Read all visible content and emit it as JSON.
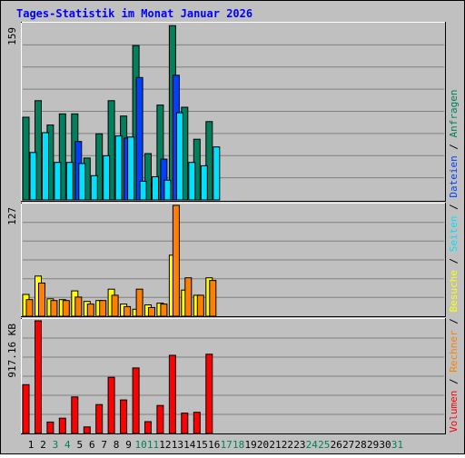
{
  "colors": {
    "frame_bg": "#c0c0c0",
    "title": "#0000ff",
    "grid": "#808080",
    "hits": "#00805c",
    "files": "#0040ff",
    "pages": "#00e0ff",
    "visits": "#ffff00",
    "sites": "#ff8000",
    "volume": "#ff0000",
    "weekday_label": "#000000",
    "weekend_label": "#00805c"
  },
  "chart_data": {
    "title": "Tages-Statistik im Monat Januar 2026",
    "type": "bar",
    "categories": [
      "1",
      "2",
      "3",
      "4",
      "5",
      "6",
      "7",
      "8",
      "9",
      "10",
      "11",
      "12",
      "13",
      "14",
      "15",
      "16",
      "17",
      "18",
      "19",
      "20",
      "21",
      "22",
      "23",
      "24",
      "25",
      "26",
      "27",
      "28",
      "29",
      "30",
      "31"
    ],
    "weekend_days": [
      "3",
      "4",
      "10",
      "11",
      "17",
      "18",
      "24",
      "25",
      "31"
    ],
    "legend_right": [
      "Volumen",
      "Rechner",
      "Besuche",
      "Seiten",
      "Dateien",
      "Anfragen"
    ],
    "panels": [
      {
        "max_label": "159",
        "ylim": [
          0,
          159
        ],
        "series": [
          {
            "name": "Anfragen",
            "values": [
              75,
              90,
              68,
              78,
              78,
              38,
              60,
              90,
              76,
              140,
              42,
              86,
              158,
              84,
              55,
              71,
              0,
              0,
              0,
              0,
              0,
              0,
              0,
              0,
              0,
              0,
              0,
              0,
              0,
              0,
              0
            ]
          },
          {
            "name": "Dateien",
            "values": [
              0,
              0,
              0,
              0,
              53,
              0,
              0,
              0,
              56,
              111,
              0,
              37,
              113,
              0,
              0,
              0,
              0,
              0,
              0,
              0,
              0,
              0,
              0,
              0,
              0,
              0,
              0,
              0,
              0,
              0,
              0
            ]
          },
          {
            "name": "Seiten",
            "values": [
              43,
              61,
              34,
              34,
              33,
              22,
              40,
              58,
              57,
              17,
              21,
              18,
              79,
              34,
              31,
              48,
              0,
              0,
              0,
              0,
              0,
              0,
              0,
              0,
              0,
              0,
              0,
              0,
              0,
              0,
              0
            ]
          }
        ]
      },
      {
        "max_label": "127",
        "ylim": [
          0,
          127
        ],
        "series": [
          {
            "name": "Besuche",
            "values": [
              25,
              46,
              20,
              19,
              29,
              17,
              18,
              31,
              14,
              8,
              13,
              15,
              70,
              30,
              24,
              44,
              0,
              0,
              0,
              0,
              0,
              0,
              0,
              0,
              0,
              0,
              0,
              0,
              0,
              0,
              0
            ]
          },
          {
            "name": "Rechner",
            "values": [
              19,
              38,
              18,
              18,
              22,
              14,
              18,
              24,
              11,
              31,
              10,
              14,
              127,
              44,
              24,
              41,
              0,
              0,
              0,
              0,
              0,
              0,
              0,
              0,
              0,
              0,
              0,
              0,
              0,
              0,
              0
            ]
          }
        ]
      },
      {
        "max_label": "917.16 KB",
        "ylim": [
          0,
          917.16
        ],
        "series": [
          {
            "name": "Volumen",
            "values": [
              397,
              917,
              93,
              124,
              297,
              53,
              235,
              457,
              273,
              533,
              96,
              228,
              636,
              166,
              172,
              645,
              0,
              0,
              0,
              0,
              0,
              0,
              0,
              0,
              0,
              0,
              0,
              0,
              0,
              0,
              0
            ]
          }
        ]
      }
    ]
  }
}
